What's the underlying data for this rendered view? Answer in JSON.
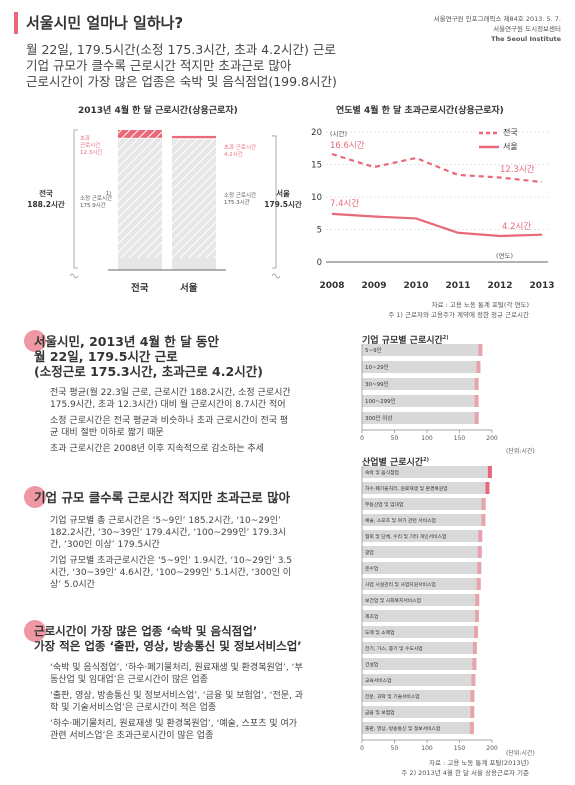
{
  "header": {
    "title": "서울시민 얼마나 일하나?",
    "publisher_line1": "서울연구원 인포그래픽스 제84호 2013. 5. 7.",
    "publisher_line2": "서울연구원 도시정보센터",
    "publisher_line3": "The Seoul Institute",
    "lead_line1": "월 22일, 179.5시간(소정 175.3시간, 초과 4.2시간) 근로",
    "lead_line2": "기업 규모가 클수록 근로시간 적지만 초과근로 많아",
    "lead_line3": "근로시간이 가장 많은 업종은 숙박 및 음식점업(199.8시간)"
  },
  "colors": {
    "accent": "#e8697a",
    "gray": "#d9d9d9",
    "dark": "#888888"
  },
  "chart_data": [
    {
      "type": "bar",
      "title": "2013년 4월 한 달 근로시간(상용근로자)",
      "categories": [
        "전국",
        "서울"
      ],
      "series": [
        {
          "name": "소정 근로시간",
          "values": [
            175.9,
            175.3
          ]
        },
        {
          "name": "초과 근로시간",
          "values": [
            12.3,
            4.2
          ]
        }
      ],
      "totals": [
        188.2,
        179.5
      ],
      "left_total_label": "전국\n188.2시간",
      "right_total_label": "서울\n179.5시간",
      "annot_over_national": "초과\n근로시간\n12.3시간",
      "annot_reg_national": "소정 근로시간\n175.9시간",
      "annot_over_seoul": "초과 근로시간\n4.2시간",
      "annot_reg_seoul": "소정 근로시간\n175.3시간",
      "footnote_mark": "1)"
    },
    {
      "type": "line",
      "title": "연도별 4월 한 달 초과근로시간(상용근로자)",
      "x": [
        2008,
        2009,
        2010,
        2011,
        2012,
        2013
      ],
      "series": [
        {
          "name": "전국",
          "values": [
            16.6,
            14.6,
            16.0,
            13.4,
            13.0,
            12.3
          ]
        },
        {
          "name": "서울",
          "values": [
            7.4,
            7.0,
            6.7,
            4.5,
            4.0,
            4.2
          ]
        }
      ],
      "ylim": [
        0,
        20
      ],
      "yticks": [
        0,
        5,
        10,
        15,
        20
      ],
      "ylabel": "(시간)",
      "xlabel": "(연도)",
      "start_label_nat": "16.6시간",
      "end_label_nat": "12.3시간",
      "start_label_seoul": "7.4시간",
      "end_label_seoul": "4.2시간",
      "legend_position": "top-right"
    },
    {
      "type": "bar",
      "orientation": "horizontal",
      "title": "기업 규모별 근로시간",
      "title_sup": "2)",
      "categories": [
        "5~9인",
        "10~29인",
        "30~99인",
        "100~299인",
        "300인 이상"
      ],
      "values": [
        185.2,
        182.2,
        179.4,
        179.3,
        179.5
      ],
      "xlim": [
        0,
        200
      ],
      "xticks": [
        0,
        50,
        100,
        150,
        200
      ],
      "xunit": "(단위:시간)"
    },
    {
      "type": "bar",
      "orientation": "horizontal",
      "title": "산업별 근로시간",
      "title_sup": "2)",
      "categories": [
        "숙박 및 음식점업",
        "하수·폐기물처리, 원료재생 및 환경복원업",
        "부동산업 및 임대업",
        "예술, 스포츠 및 여가 관련 서비스업",
        "협회 및 단체, 수리 및 기타 개인서비스업",
        "광업",
        "운수업",
        "사업 시설관리 및 사업지원서비스업",
        "보건업 및 사회복지서비스업",
        "제조업",
        "도매 및 소매업",
        "전기, 가스, 증기 및 수도사업",
        "건설업",
        "교육서비스업",
        "전문, 과학 및 기술서비스업",
        "금융 및 보험업",
        "출판, 영상, 방송통신 및 정보서비스업"
      ],
      "values": [
        199.8,
        196.1,
        190.2,
        189.8,
        185.0,
        184.2,
        183.5,
        182.6,
        180.3,
        180.0,
        178.4,
        176.8,
        176.0,
        174.5,
        173.0,
        172.7,
        172.2
      ],
      "highlight": [
        0,
        1
      ],
      "xlim": [
        0,
        200
      ],
      "xticks": [
        0,
        50,
        100,
        150,
        200
      ],
      "xunit": "(단위:시간)"
    }
  ],
  "sources": {
    "top_source": "자료 : 고용 노동 통계 포털(각 연도)",
    "top_note": "주 1) 근로자와 고용주가 계약에 정한 정규 근로시간",
    "bottom_source": "자료 : 고용 노동 통계 포털(2013년)",
    "bottom_note": "주 2) 2013년 4월 한 달 서울 상용근로자 기준"
  },
  "sections": [
    {
      "head_line1": "서울시민, 2013년 4월 한 달 동안",
      "head_line2": "월 22일, 179.5시간 근로",
      "head_line3": "(소정근로 175.3시간, 초과근로 4.2시간)",
      "paras": [
        "전국 평균(월 22.3일 근로, 근로시간 188.2시간, 소정 근로시간 175.9시간, 초과 12.3시간) 대비 월 근로시간이 8.7시간 적어",
        "소정 근로시간은 전국 평균과 비슷하나 초과 근로시간이 전국 평균 대비 절반 이하로 짧기 때문",
        "초과 근로시간은 2008년 이후 지속적으로 감소하는 추세"
      ]
    },
    {
      "head_line1": "기업 규모 클수록 근로시간 적지만 초과근로 많아",
      "paras": [
        "기업 규모별 총 근로시간은 ‘5~9인’ 185.2시간, ‘10~29인’ 182.2시간, ‘30~39인’ 179.4시간, ‘100~299인’ 179.3시간, ‘300인 이상’ 179.5시간",
        "기업 규모별 초과근로시간은 ‘5~9인’ 1.9시간, ‘10~29인’ 3.5시간, ‘30~39인’ 4.6시간, ‘100~299인’ 5.1시간, ‘300인 이상’ 5.0시간"
      ]
    },
    {
      "head_line1": "근로시간이 가장 많은 업종 ‘숙박 및 음식점업’",
      "head_line2": "가장 적은 업종 ‘출판, 영상, 방송통신 및 정보서비스업’",
      "paras": [
        "‘숙박 및 음식점업’, ‘하수·폐기물처리, 원료재생 및 환경복원업’, ‘부동산업 및 임대업’은 근로시간이 많은 업종",
        "‘출판, 영상, 방송통신 및 정보서비스업’, ‘금융 및 보험업’, ‘전문, 과학 및 기술서비스업’은 근로시간이 적은 업종",
        "‘하수·폐기물처리, 원료재생 및 환경복원업’, ‘예술, 스포츠 및 여가 관련 서비스업’은 초과근로시간이 많은 업종"
      ]
    }
  ]
}
